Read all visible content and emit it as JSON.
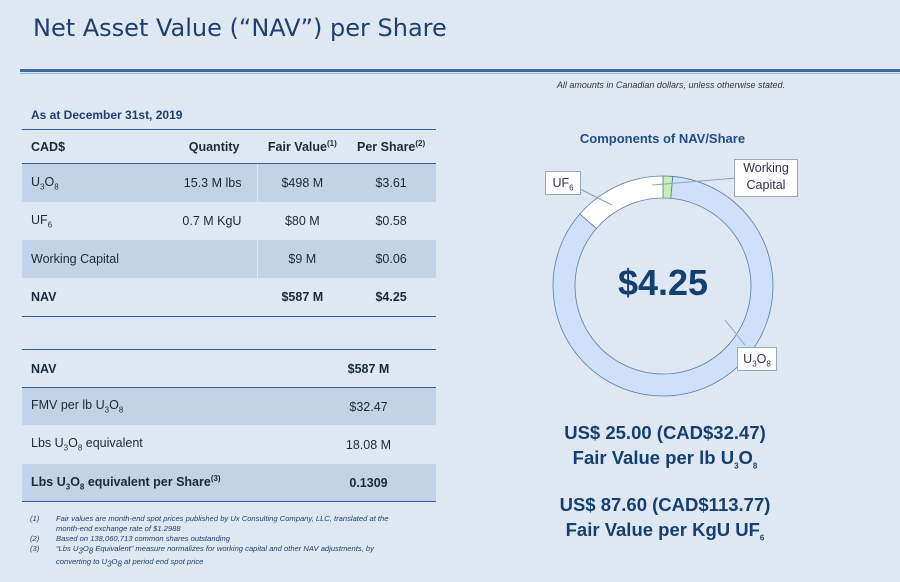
{
  "title": "Net Asset Value (“NAV”) per Share",
  "disclaimer": "All amounts in Canadian dollars, unless otherwise stated.",
  "as_at": "As at December 31st, 2019",
  "nav_table": {
    "headers": {
      "col1": "CAD$",
      "col2": "Quantity",
      "col3": "Fair Value",
      "col3_note": "(1)",
      "col4": "Per Share",
      "col4_note": "(2)"
    },
    "rows": [
      {
        "label": "U",
        "label_sub1": "3",
        "label_mid": "O",
        "label_sub2": "8",
        "quantity": "15.3 M lbs",
        "fair_value": "$498 M",
        "per_share": "$3.61"
      },
      {
        "label": "UF",
        "label_sub1": "6",
        "quantity": "0.7 M KgU",
        "fair_value": "$80 M",
        "per_share": "$0.58"
      },
      {
        "label": "Working Capital",
        "quantity": "",
        "fair_value": "$9 M",
        "per_share": "$0.06"
      },
      {
        "label": "NAV",
        "quantity": "",
        "fair_value": "$587 M",
        "per_share": "$4.25"
      }
    ]
  },
  "equiv_table": {
    "rows": [
      {
        "label": "NAV",
        "value": "$587 M"
      },
      {
        "label_a": "FMV per lb U",
        "sub1": "3",
        "label_b": "O",
        "sub2": "8",
        "value": "$32.47"
      },
      {
        "label_a": "Lbs U",
        "sub1": "3",
        "label_b": "O",
        "sub2": "8",
        "label_c": " equivalent",
        "value": "18.08 M"
      },
      {
        "label_a": "Lbs U",
        "sub1": "3",
        "label_b": "O",
        "sub2": "8",
        "label_c": " equivalent per Share",
        "note": "(3)",
        "value": "0.1309"
      }
    ]
  },
  "footnotes": [
    {
      "key": "(1)",
      "text": "Fair values are month-end spot prices published by Ux Consulting Company, LLC, translated at the month-end exchange rate of $1.2988"
    },
    {
      "key": "(2)",
      "text": "Based on 138,060,713 common shares outstanding"
    },
    {
      "key": "(3)",
      "text_a": "“Lbs U",
      "sub1": "3",
      "text_b": "O",
      "sub2": "8",
      "text_c": " Equivalent” measure normalizes for working capital and other NAV adjustments, by converting to U",
      "sub3": "3",
      "text_d": "O",
      "sub4": "8",
      "text_e": " at period end spot price"
    }
  ],
  "chart_data": {
    "type": "pie",
    "title": "Components of NAV/Share",
    "center_label": "$4.25",
    "slices": [
      {
        "name": "U3O8",
        "value": 3.61,
        "color": "#cfe0fb"
      },
      {
        "name": "UF6",
        "value": 0.58,
        "color": "#ffffff"
      },
      {
        "name": "Working Capital",
        "value": 0.06,
        "color": "#c6efb0"
      }
    ],
    "callouts": {
      "uf6": {
        "a": "UF",
        "sub": "6"
      },
      "wc_line1": "Working",
      "wc_line2": "Capital",
      "u3o8": {
        "a": "U",
        "sub1": "3",
        "b": "O",
        "sub2": "8"
      }
    }
  },
  "fair_values": {
    "u3o8_line1": "US$ 25.00 (CAD$32.47)",
    "u3o8_line2_a": "Fair Value per lb U",
    "u3o8_sub1": "3",
    "u3o8_line2_b": "O",
    "u3o8_sub2": "8",
    "uf6_line1": "US$ 87.60 (CAD$113.77)",
    "uf6_line2_a": "Fair Value per KgU UF",
    "uf6_sub": "6"
  }
}
